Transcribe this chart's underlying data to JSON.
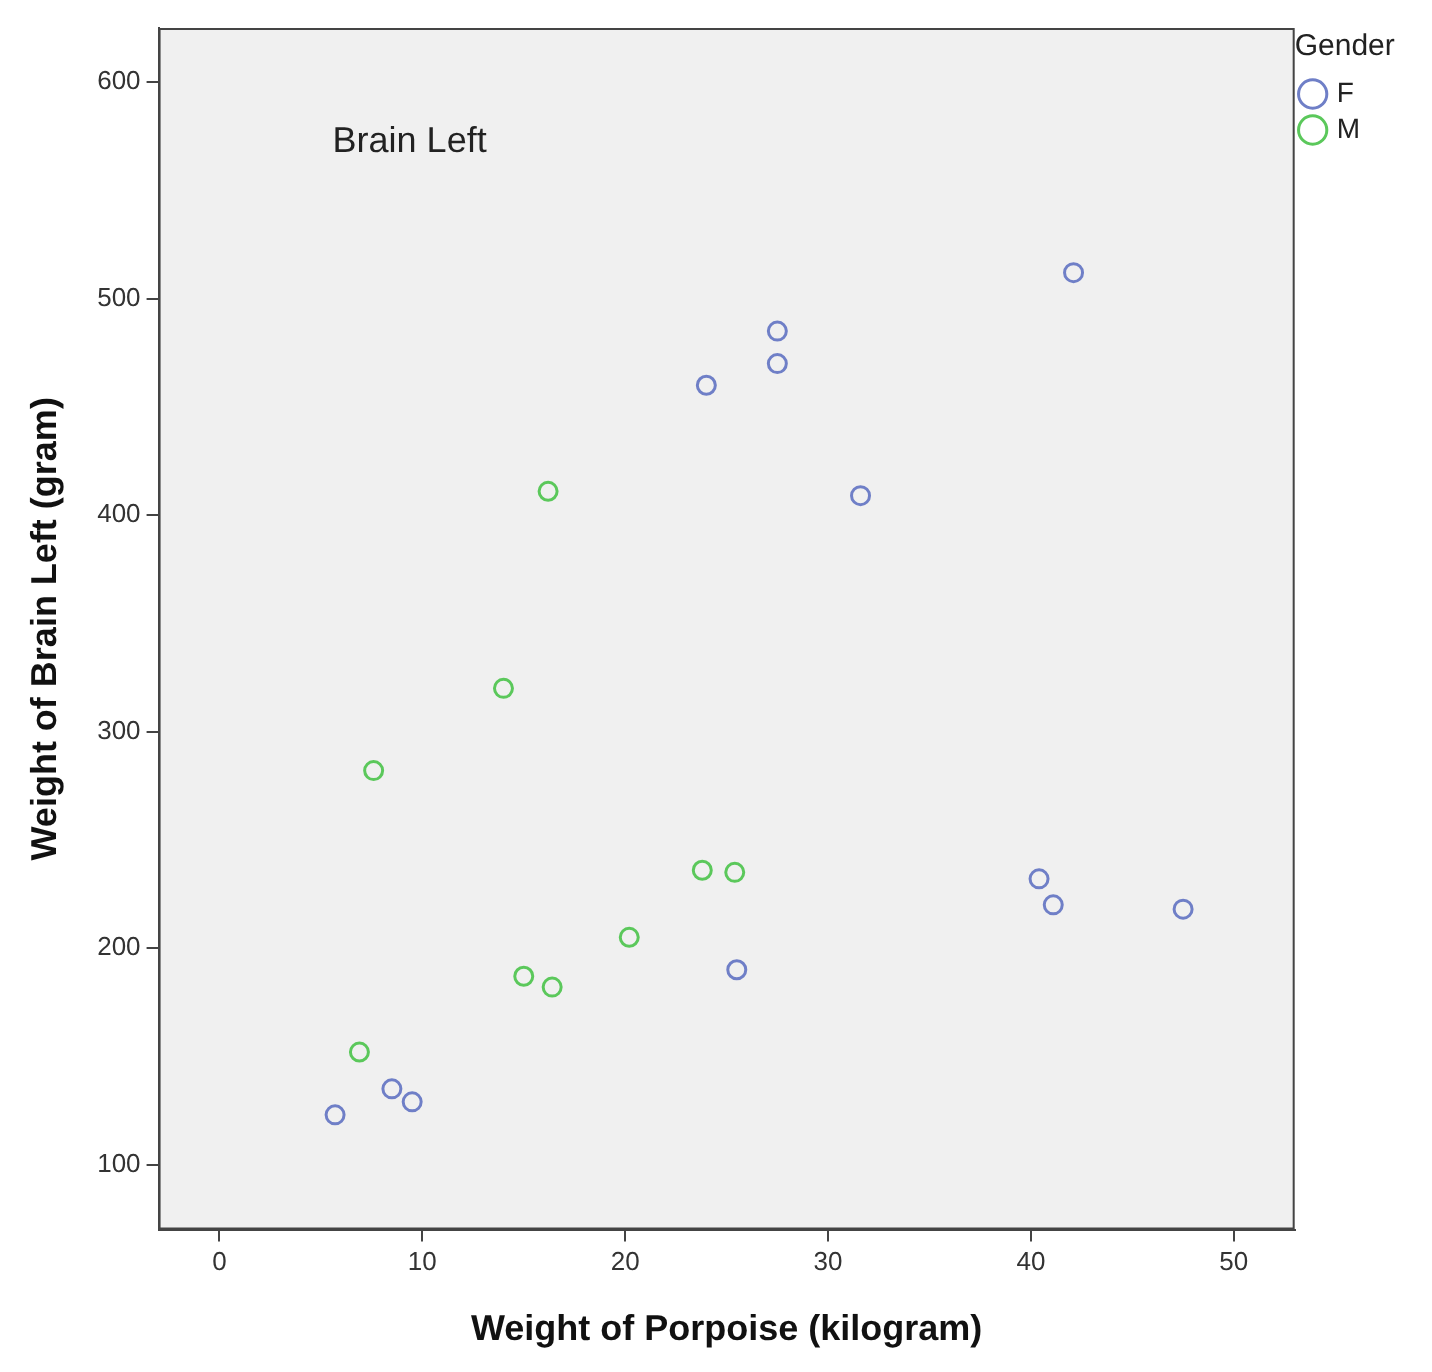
{
  "chart_data": {
    "type": "scatter",
    "xlabel": "Weight of Porpoise (kilogram)",
    "ylabel": "Weight of Brain Left (gram)",
    "legend_title": "Gender",
    "legend": "top right",
    "marker": "circle",
    "grid": false,
    "xlim": [
      -3,
      53
    ],
    "xticks": [
      0,
      10,
      20,
      30,
      40,
      50
    ],
    "ylim": [
      70,
      625
    ],
    "yticks": [
      100,
      200,
      300,
      400,
      500,
      600
    ],
    "annotations": [
      "Brain Left"
    ],
    "series": [
      {
        "name": "F",
        "color": "#6f7fc7",
        "x": [
          5.7,
          8.5,
          9.5,
          25.5,
          24.0,
          27.5,
          27.5,
          31.6,
          42.1,
          40.4,
          41.1,
          47.5
        ],
        "values": [
          123,
          135,
          129,
          190,
          460,
          485,
          470,
          409,
          512,
          232,
          220,
          218
        ]
      },
      {
        "name": "M",
        "color": "#5bc85b",
        "x": [
          6.9,
          7.6,
          14.0,
          16.2,
          15.0,
          16.4,
          20.2,
          23.8,
          25.4
        ],
        "values": [
          152,
          282,
          320,
          411,
          187,
          182,
          205,
          236,
          235
        ]
      }
    ]
  }
}
